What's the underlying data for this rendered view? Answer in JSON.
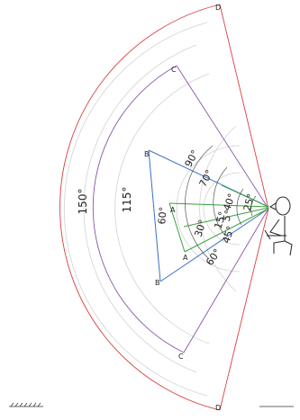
{
  "diagram": {
    "angle_labels": {
      "a150": "150°",
      "a115": "115°",
      "a90": "90°",
      "a70": "70°",
      "a60_left": "60°",
      "a40": "40°",
      "a25": "25°",
      "a15": "15°",
      "a5": "5°",
      "a30": "30°",
      "a45": "45°",
      "a60_right": "60°"
    },
    "point_labels": {
      "d_top": "D",
      "c_top": "C",
      "b_top": "B",
      "a_top": "A",
      "a_bot": "A",
      "b_bot": "B",
      "c_bot": "C",
      "d_bot": "D"
    },
    "colors": {
      "d_sector": "#d94040",
      "c_sector": "#8a55a8",
      "b_sector": "#3d6fc4",
      "a_sector": "#3aa040",
      "grid": "#cccccc",
      "ink": "#222222"
    },
    "icons": [
      "seated-person-icon",
      "floor-hatch-icon"
    ]
  }
}
